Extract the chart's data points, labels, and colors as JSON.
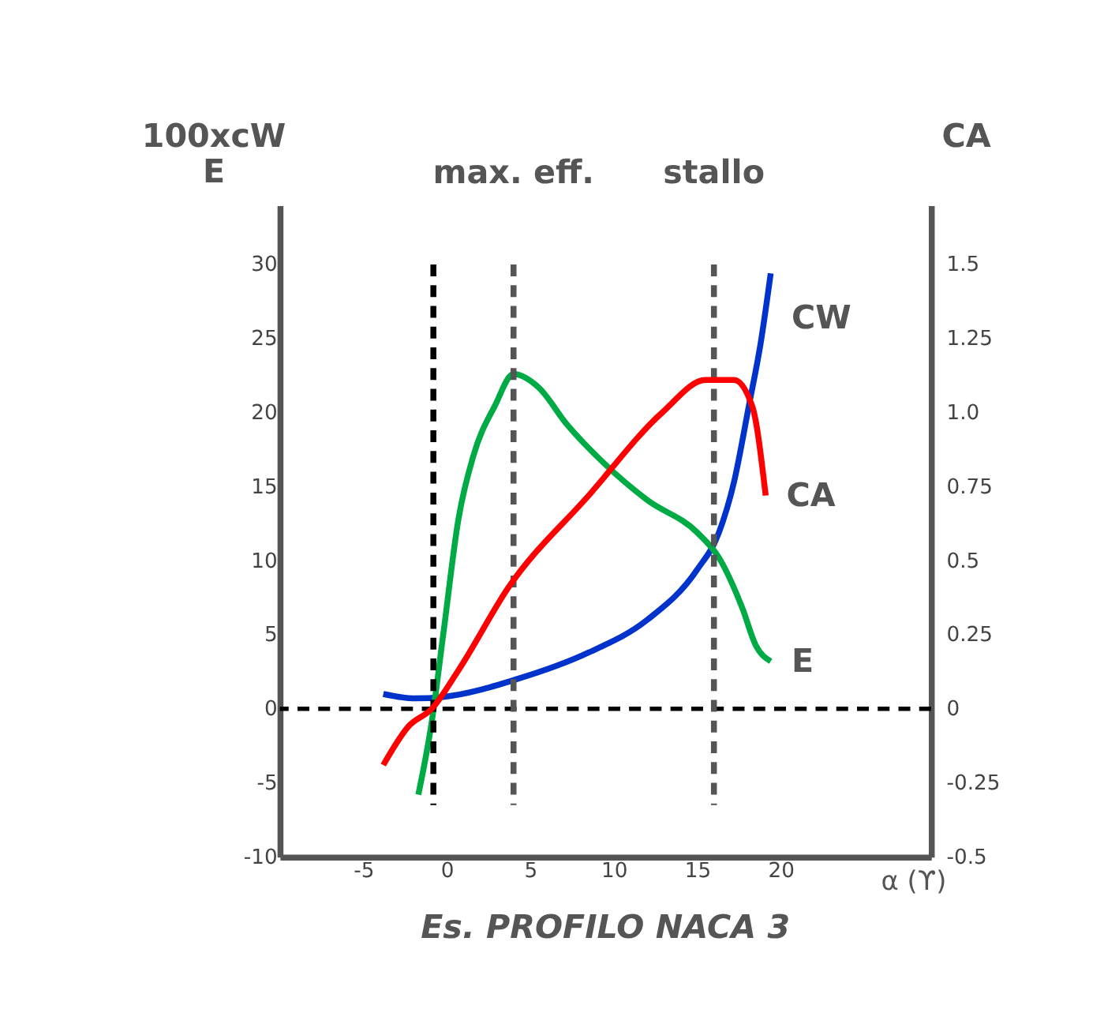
{
  "chart_data": {
    "type": "line",
    "title": "Es. PROFILO NACA 3",
    "xlabel": "α (ϒ)",
    "ylabel": [
      "100xcW",
      "E"
    ],
    "y2label": "CA",
    "xlim": [
      -10,
      29
    ],
    "ylim": [
      -10,
      34
    ],
    "y2lim": [
      -0.5,
      1.7
    ],
    "xticks": [
      -5,
      0,
      5,
      10,
      15,
      20
    ],
    "yticks": [
      -10,
      -5,
      0,
      5,
      10,
      15,
      20,
      25,
      30
    ],
    "y2ticks": [
      -0.5,
      -0.25,
      0,
      0.25,
      0.5,
      0.75,
      {
        "value": 1,
        "label": "1.0"
      },
      1.25,
      1.5
    ],
    "grid": false,
    "series": [
      {
        "name": "CW",
        "color": "#0033cc",
        "x": [
          -3.8,
          -1.9,
          -0.2,
          4.2,
          8.5,
          12.0,
          15.0,
          16.3,
          17.2,
          18.1,
          18.8,
          19.4
        ],
        "values": [
          1.0,
          0.7,
          0.8,
          2.0,
          3.8,
          6.0,
          9.4,
          11.9,
          15.3,
          20.5,
          24.7,
          29.4
        ]
      },
      {
        "name": "CA",
        "color": "#ff0000",
        "axis": "y2",
        "x": [
          -3.8,
          -2.3,
          -0.9,
          0.7,
          3.7,
          8.5,
          12.9,
          15.5,
          17.2,
          18.3,
          19.1
        ],
        "values": [
          -0.19,
          -0.06,
          0,
          0.13,
          0.41,
          0.72,
          1.0,
          1.11,
          1.11,
          1.02,
          0.72
        ]
      },
      {
        "name": "E",
        "color": "#00aa44",
        "x": [
          -1.7,
          -0.9,
          -0.2,
          0.7,
          1.6,
          2.9,
          4.0,
          5.5,
          7.2,
          9.4,
          12.0,
          15.0,
          16.3,
          17.7,
          18.5,
          19.4
        ],
        "values": [
          -5.8,
          -0.9,
          5.1,
          12.8,
          17.1,
          20.5,
          22.6,
          21.7,
          19.2,
          16.6,
          14.1,
          11.9,
          10.2,
          6.8,
          4.3,
          3.2
        ]
      }
    ],
    "ref_lines": [
      {
        "axis": "y",
        "value": 0,
        "color": "#000000",
        "line_style": "dashed"
      },
      {
        "axis": "x",
        "value": -0.8,
        "color": "#000000",
        "line_style": "dashed"
      },
      {
        "axis": "x",
        "value": 4,
        "label": "max. eff.",
        "color": "#555555",
        "line_style": "dashed"
      },
      {
        "axis": "x",
        "value": 16,
        "label": "stallo",
        "color": "#555555",
        "line_style": "dashed"
      }
    ]
  }
}
